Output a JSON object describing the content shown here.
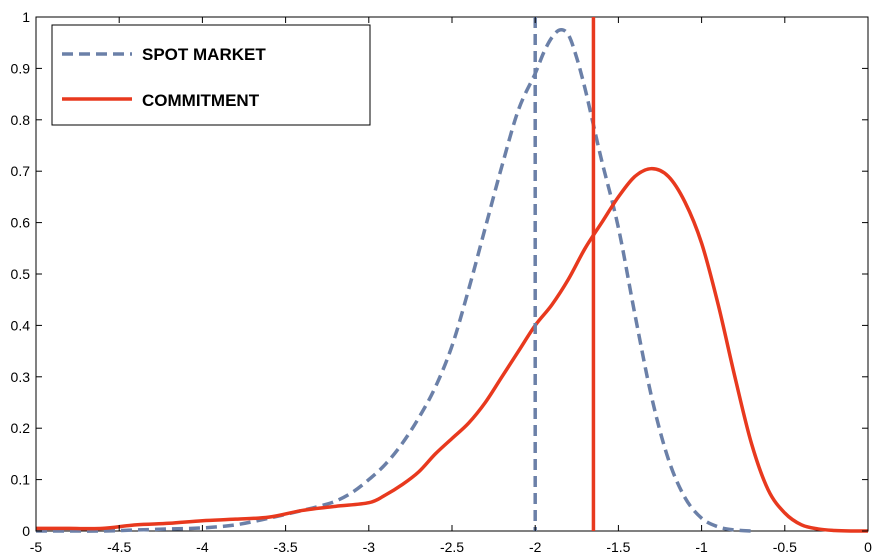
{
  "chart_data": {
    "type": "line",
    "title": "",
    "xlabel": "",
    "ylabel": "",
    "xlim": [
      -5,
      0
    ],
    "ylim": [
      0,
      1
    ],
    "xticks": [
      "-5",
      "-4.5",
      "-4",
      "-3.5",
      "-3",
      "-2.5",
      "-2",
      "-1.5",
      "-1",
      "-0.5",
      "0"
    ],
    "yticks": [
      "0",
      "0.1",
      "0.2",
      "0.3",
      "0.4",
      "0.5",
      "0.6",
      "0.7",
      "0.8",
      "0.9",
      "1"
    ],
    "grid": false,
    "legend_position": "top-left",
    "series": [
      {
        "name": "SPOT MARKET",
        "style": "dashed",
        "color": "#6b80a8",
        "x": [
          -5.0,
          -4.8,
          -4.6,
          -4.4,
          -4.2,
          -4.0,
          -3.8,
          -3.6,
          -3.4,
          -3.3,
          -3.2,
          -3.1,
          -3.0,
          -2.9,
          -2.8,
          -2.7,
          -2.6,
          -2.5,
          -2.4,
          -2.3,
          -2.2,
          -2.1,
          -2.0,
          -1.95,
          -1.9,
          -1.85,
          -1.8,
          -1.75,
          -1.7,
          -1.65,
          -1.6,
          -1.5,
          -1.4,
          -1.3,
          -1.2,
          -1.1,
          -1.0,
          -0.9,
          -0.8,
          -0.7
        ],
        "y": [
          0.0,
          0.0,
          0.0,
          0.002,
          0.004,
          0.006,
          0.012,
          0.025,
          0.04,
          0.048,
          0.058,
          0.075,
          0.1,
          0.13,
          0.17,
          0.22,
          0.28,
          0.36,
          0.47,
          0.59,
          0.71,
          0.82,
          0.89,
          0.93,
          0.96,
          0.975,
          0.965,
          0.92,
          0.86,
          0.79,
          0.72,
          0.59,
          0.42,
          0.26,
          0.14,
          0.065,
          0.025,
          0.008,
          0.002,
          0.0
        ]
      },
      {
        "name": "COMMITMENT",
        "style": "solid",
        "color": "#e8391e",
        "x": [
          -5.0,
          -4.8,
          -4.6,
          -4.4,
          -4.2,
          -4.0,
          -3.8,
          -3.6,
          -3.4,
          -3.2,
          -3.0,
          -2.9,
          -2.8,
          -2.7,
          -2.6,
          -2.5,
          -2.4,
          -2.3,
          -2.2,
          -2.1,
          -2.0,
          -1.9,
          -1.8,
          -1.7,
          -1.6,
          -1.5,
          -1.4,
          -1.3,
          -1.2,
          -1.1,
          -1.0,
          -0.9,
          -0.8,
          -0.7,
          -0.6,
          -0.5,
          -0.4,
          -0.3,
          -0.2,
          -0.1,
          0.0
        ],
        "y": [
          0.005,
          0.005,
          0.005,
          0.012,
          0.015,
          0.02,
          0.023,
          0.027,
          0.04,
          0.048,
          0.055,
          0.07,
          0.09,
          0.115,
          0.15,
          0.18,
          0.21,
          0.25,
          0.3,
          0.35,
          0.4,
          0.44,
          0.49,
          0.55,
          0.6,
          0.65,
          0.69,
          0.705,
          0.69,
          0.64,
          0.56,
          0.44,
          0.3,
          0.17,
          0.08,
          0.035,
          0.012,
          0.004,
          0.001,
          0.0,
          0.0
        ]
      }
    ],
    "vertical_lines": [
      {
        "x": -2.0,
        "style": "dashed",
        "color": "#6b80a8"
      },
      {
        "x": -1.65,
        "style": "solid",
        "color": "#e8391e"
      }
    ]
  }
}
